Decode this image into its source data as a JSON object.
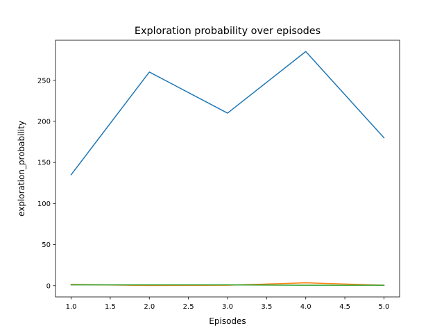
{
  "chart_data": {
    "type": "line",
    "title": "Exploration probability over episodes",
    "xlabel": "Episodes",
    "ylabel": "exploration_probability",
    "x": [
      1.0,
      2.0,
      3.0,
      4.0,
      5.0
    ],
    "xlim": [
      0.8,
      5.2
    ],
    "ylim": [
      -13.7,
      298.7
    ],
    "xticks": [
      "1.0",
      "1.5",
      "2.0",
      "2.5",
      "3.0",
      "3.5",
      "4.0",
      "4.5",
      "5.0"
    ],
    "yticks": [
      "0",
      "50",
      "100",
      "150",
      "200",
      "250"
    ],
    "grid": false,
    "series": [
      {
        "color": "#1f77b4",
        "values": [
          135,
          260,
          210,
          285,
          180
        ]
      },
      {
        "color": "#ff7f0e",
        "values": [
          1.5,
          0.2,
          0.5,
          3.5,
          0.5
        ]
      },
      {
        "color": "#2ca02c",
        "values": [
          1.0,
          1.0,
          1.0,
          0.5,
          0.5
        ]
      }
    ]
  }
}
